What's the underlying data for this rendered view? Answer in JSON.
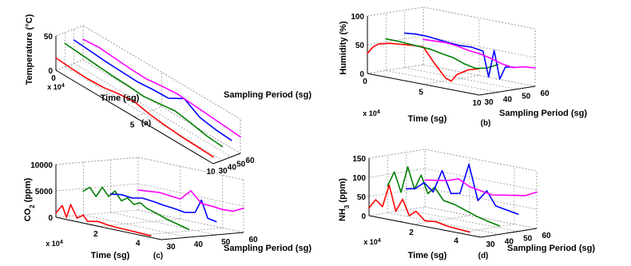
{
  "chart_data": [
    {
      "type": "line",
      "panel": "(a)",
      "xlabel": "Time (sg)",
      "ylabel": "Sampling Period (sg)",
      "zlabel": "Temperature (°C)",
      "x_multiplier": "x 10",
      "x_multiplier_exp": "4",
      "xlim": [
        0,
        10
      ],
      "ylim": [
        30,
        60
      ],
      "zlim": [
        0,
        50
      ],
      "x_ticks": [
        "0",
        "5",
        "10"
      ],
      "y_ticks": [
        "30",
        "40",
        "50",
        "60"
      ],
      "z_ticks": [
        "0",
        "50"
      ],
      "grid": true,
      "series": [
        {
          "color": "#ff0000",
          "period": 30,
          "x": [
            0,
            1,
            2,
            3,
            4,
            5,
            6,
            7,
            8,
            9,
            10
          ],
          "z": [
            18,
            16,
            15,
            16,
            20,
            22,
            17,
            14,
            12,
            11,
            10
          ]
        },
        {
          "color": "#008000",
          "period": 40,
          "x": [
            0,
            1,
            2,
            3,
            4,
            5,
            6,
            7,
            8,
            9,
            10
          ],
          "z": [
            34,
            32,
            30,
            28,
            27,
            25,
            28,
            31,
            27,
            22,
            20
          ]
        },
        {
          "color": "#0000ff",
          "period": 50,
          "x": [
            0,
            1,
            2,
            3,
            4,
            5,
            6,
            7,
            8,
            9,
            10
          ],
          "z": [
            34,
            32,
            30,
            29,
            28,
            30,
            31,
            44,
            30,
            26,
            24
          ]
        },
        {
          "color": "#ff00ff",
          "period": 60,
          "x": [
            0,
            1,
            2,
            3,
            4,
            5,
            6,
            7,
            8,
            9,
            10
          ],
          "z": [
            30,
            32,
            30,
            28,
            27,
            30,
            32,
            30,
            28,
            26,
            24
          ]
        }
      ]
    },
    {
      "type": "line",
      "panel": "(b)",
      "xlabel": "Time (sg)",
      "ylabel": "Sampling Period (sg)",
      "zlabel": "Humidity (%)",
      "x_multiplier": "x 10",
      "x_multiplier_exp": "4",
      "xlim": [
        0,
        10
      ],
      "ylim": [
        30,
        60
      ],
      "zlim": [
        0,
        100
      ],
      "x_ticks": [
        "0",
        "5",
        "10"
      ],
      "y_ticks": [
        "30",
        "40",
        "50",
        "60"
      ],
      "z_ticks": [
        "0",
        "50",
        "100"
      ],
      "grid": true,
      "series": [
        {
          "color": "#ff0000",
          "period": 30,
          "x": [
            0,
            0.5,
            1,
            2,
            3,
            4,
            5,
            6,
            7,
            7.5,
            8,
            9,
            10
          ],
          "z": [
            35,
            48,
            55,
            60,
            62,
            64,
            65,
            40,
            18,
            15,
            28,
            40,
            46
          ]
        },
        {
          "color": "#008000",
          "period": 40,
          "x": [
            0,
            1,
            2,
            3,
            4,
            5,
            6,
            7,
            8,
            9,
            10
          ],
          "z": [
            55,
            55,
            54,
            53,
            52,
            48,
            45,
            38,
            34,
            38,
            48
          ]
        },
        {
          "color": "#0000ff",
          "period": 50,
          "x": [
            0,
            1,
            2,
            3,
            4,
            5,
            6,
            7,
            7.5,
            8,
            8.5,
            9,
            10
          ],
          "z": [
            60,
            62,
            62,
            60,
            58,
            57,
            58,
            55,
            12,
            60,
            12,
            35,
            38
          ]
        },
        {
          "color": "#ff00ff",
          "period": 60,
          "x": [
            0,
            1,
            2,
            3,
            4,
            5,
            6,
            7,
            8,
            9,
            10
          ],
          "z": [
            44,
            45,
            46,
            44,
            40,
            38,
            34,
            28,
            25,
            30,
            32
          ]
        }
      ]
    },
    {
      "type": "line",
      "panel": "(c)",
      "xlabel": "Time (sg)",
      "ylabel": "Sampling Period (sg)",
      "zlabel": "CO",
      "zlabel_sub": "2",
      "zlabel_rest": " (ppm)",
      "x_multiplier": "x 10",
      "x_multiplier_exp": "4",
      "xlim": [
        0,
        5
      ],
      "ylim": [
        30,
        60
      ],
      "zlim": [
        0,
        10000
      ],
      "x_ticks": [
        "2",
        "4"
      ],
      "x_tick_values": [
        2,
        4
      ],
      "y_ticks": [
        "30",
        "40",
        "50",
        "60"
      ],
      "z_ticks": [
        "0",
        "5000",
        "10000"
      ],
      "grid": true,
      "series": [
        {
          "color": "#ff0000",
          "period": 30,
          "x": [
            0,
            0.3,
            0.5,
            0.7,
            1,
            1.3,
            1.5,
            2,
            2.5,
            3,
            3.5,
            4,
            4.5
          ],
          "z": [
            800,
            2500,
            400,
            3000,
            700,
            1500,
            500,
            900,
            600,
            500,
            450,
            400,
            300
          ]
        },
        {
          "color": "#008000",
          "period": 40,
          "x": [
            0,
            0.3,
            0.6,
            0.9,
            1.2,
            1.5,
            1.8,
            2.1,
            2.4,
            2.7,
            3,
            3.5,
            4,
            4.5,
            5
          ],
          "z": [
            4500,
            5500,
            4000,
            6000,
            4500,
            5800,
            4200,
            5000,
            4000,
            4600,
            3800,
            3200,
            2500,
            2000,
            1500
          ]
        },
        {
          "color": "#0000ff",
          "period": 50,
          "x": [
            0,
            0.5,
            1,
            1.5,
            2,
            2.5,
            3,
            3.5,
            4,
            4.3,
            4.6,
            5
          ],
          "z": [
            3500,
            3800,
            3600,
            4000,
            3800,
            3500,
            3300,
            3000,
            3400,
            6000,
            2800,
            2500
          ]
        },
        {
          "color": "#ff00ff",
          "period": 60,
          "x": [
            0,
            0.5,
            1,
            1.5,
            2,
            2.5,
            3,
            3.5,
            4,
            4.5,
            5
          ],
          "z": [
            3800,
            4000,
            4200,
            4000,
            3800,
            5800,
            3800,
            3700,
            3500,
            3600,
            4600
          ]
        }
      ]
    },
    {
      "type": "line",
      "panel": "(d)",
      "xlabel": "Time (sg)",
      "ylabel": "Sampling Period (sg)",
      "zlabel": "NH",
      "zlabel_sub": "3",
      "zlabel_rest": " (ppm)",
      "x_multiplier": "x 10",
      "x_multiplier_exp": "4",
      "xlim": [
        0,
        5
      ],
      "ylim": [
        30,
        60
      ],
      "zlim": [
        0,
        150
      ],
      "x_ticks": [
        "2",
        "4"
      ],
      "x_tick_values": [
        2,
        4
      ],
      "y_ticks": [
        "30",
        "40",
        "50",
        "60"
      ],
      "z_ticks": [
        "0",
        "50",
        "100",
        "150"
      ],
      "grid": true,
      "series": [
        {
          "color": "#ff0000",
          "period": 30,
          "x": [
            0,
            0.3,
            0.6,
            0.9,
            1.2,
            1.5,
            1.8,
            2.1,
            2.5,
            3,
            3.5,
            4,
            4.5
          ],
          "z": [
            20,
            45,
            30,
            90,
            25,
            60,
            20,
            35,
            15,
            18,
            12,
            10,
            8
          ]
        },
        {
          "color": "#008000",
          "period": 40,
          "x": [
            0,
            0.3,
            0.6,
            0.9,
            1.2,
            1.5,
            1.8,
            2.1,
            2.5,
            3,
            3.5,
            4,
            4.5,
            5
          ],
          "z": [
            70,
            110,
            60,
            130,
            75,
            115,
            70,
            90,
            60,
            55,
            45,
            35,
            28,
            22
          ]
        },
        {
          "color": "#0000ff",
          "period": 50,
          "x": [
            0,
            0.4,
            0.8,
            1.2,
            1.6,
            2,
            2.4,
            2.8,
            3.2,
            3.6,
            4,
            4.5,
            5
          ],
          "z": [
            55,
            60,
            80,
            60,
            120,
            65,
            70,
            150,
            60,
            90,
            55,
            50,
            45
          ]
        },
        {
          "color": "#ff00ff",
          "period": 60,
          "x": [
            0,
            0.5,
            1,
            1.5,
            2,
            2.5,
            3,
            3.5,
            4,
            4.5,
            5
          ],
          "z": [
            70,
            75,
            80,
            90,
            75,
            70,
            65,
            70,
            75,
            80,
            95
          ]
        }
      ]
    }
  ]
}
